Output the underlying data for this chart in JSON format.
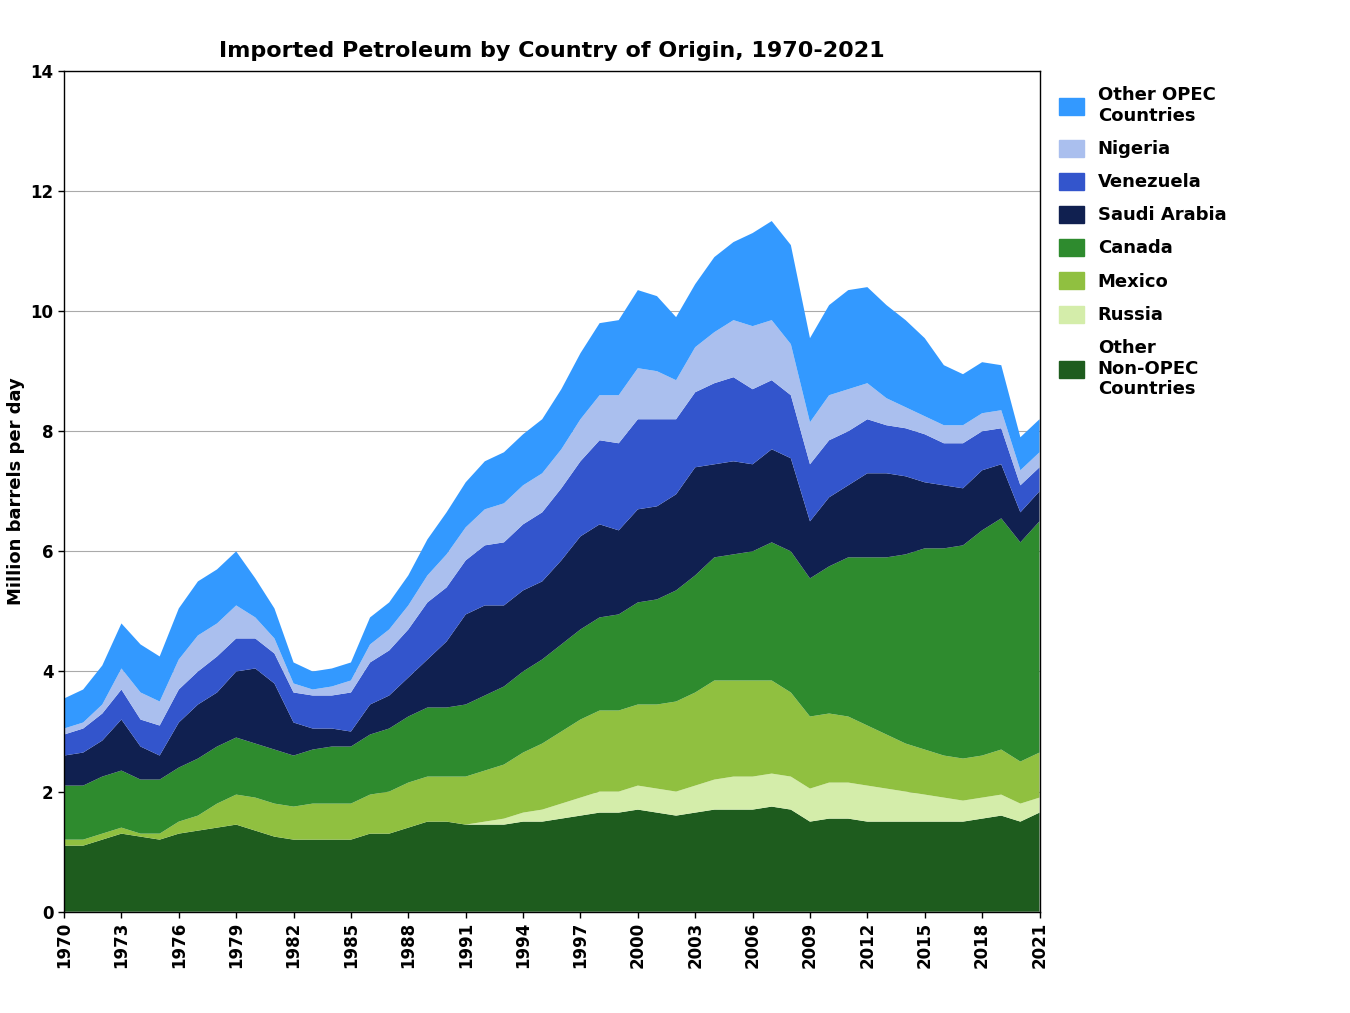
{
  "title": "Imported Petroleum by Country of Origin, 1970-2021",
  "ylabel": "Million barrels per day",
  "years": [
    1970,
    1971,
    1972,
    1973,
    1974,
    1975,
    1976,
    1977,
    1978,
    1979,
    1980,
    1981,
    1982,
    1983,
    1984,
    1985,
    1986,
    1987,
    1988,
    1989,
    1990,
    1991,
    1992,
    1993,
    1994,
    1995,
    1996,
    1997,
    1998,
    1999,
    2000,
    2001,
    2002,
    2003,
    2004,
    2005,
    2006,
    2007,
    2008,
    2009,
    2010,
    2011,
    2012,
    2013,
    2014,
    2015,
    2016,
    2017,
    2018,
    2019,
    2020,
    2021
  ],
  "series": {
    "Other Non-OPEC Countries": [
      1.1,
      1.1,
      1.2,
      1.3,
      1.25,
      1.2,
      1.3,
      1.35,
      1.4,
      1.45,
      1.35,
      1.25,
      1.2,
      1.2,
      1.2,
      1.2,
      1.3,
      1.3,
      1.4,
      1.5,
      1.5,
      1.45,
      1.45,
      1.45,
      1.5,
      1.5,
      1.55,
      1.6,
      1.65,
      1.65,
      1.7,
      1.65,
      1.6,
      1.65,
      1.7,
      1.7,
      1.7,
      1.75,
      1.7,
      1.5,
      1.55,
      1.55,
      1.5,
      1.5,
      1.5,
      1.5,
      1.5,
      1.5,
      1.55,
      1.6,
      1.5,
      1.65
    ],
    "Russia": [
      0.0,
      0.0,
      0.0,
      0.0,
      0.0,
      0.0,
      0.0,
      0.0,
      0.0,
      0.0,
      0.0,
      0.0,
      0.0,
      0.0,
      0.0,
      0.0,
      0.0,
      0.0,
      0.0,
      0.0,
      0.0,
      0.0,
      0.05,
      0.1,
      0.15,
      0.2,
      0.25,
      0.3,
      0.35,
      0.35,
      0.4,
      0.4,
      0.4,
      0.45,
      0.5,
      0.55,
      0.55,
      0.55,
      0.55,
      0.55,
      0.6,
      0.6,
      0.6,
      0.55,
      0.5,
      0.45,
      0.4,
      0.35,
      0.35,
      0.35,
      0.3,
      0.25
    ],
    "Mexico": [
      0.1,
      0.1,
      0.1,
      0.1,
      0.05,
      0.1,
      0.2,
      0.25,
      0.4,
      0.5,
      0.55,
      0.55,
      0.55,
      0.6,
      0.6,
      0.6,
      0.65,
      0.7,
      0.75,
      0.75,
      0.75,
      0.8,
      0.85,
      0.9,
      1.0,
      1.1,
      1.2,
      1.3,
      1.35,
      1.35,
      1.35,
      1.4,
      1.5,
      1.55,
      1.65,
      1.6,
      1.6,
      1.55,
      1.4,
      1.2,
      1.15,
      1.1,
      1.0,
      0.9,
      0.8,
      0.75,
      0.7,
      0.7,
      0.7,
      0.75,
      0.7,
      0.75
    ],
    "Canada": [
      0.9,
      0.9,
      0.95,
      0.95,
      0.9,
      0.9,
      0.9,
      0.95,
      0.95,
      0.95,
      0.9,
      0.9,
      0.85,
      0.9,
      0.95,
      0.95,
      1.0,
      1.05,
      1.1,
      1.15,
      1.15,
      1.2,
      1.25,
      1.3,
      1.35,
      1.4,
      1.45,
      1.5,
      1.55,
      1.6,
      1.7,
      1.75,
      1.85,
      1.95,
      2.05,
      2.1,
      2.15,
      2.3,
      2.35,
      2.3,
      2.45,
      2.65,
      2.8,
      2.95,
      3.15,
      3.35,
      3.45,
      3.55,
      3.75,
      3.85,
      3.65,
      3.85
    ],
    "Saudi Arabia": [
      0.5,
      0.55,
      0.6,
      0.85,
      0.55,
      0.4,
      0.75,
      0.9,
      0.9,
      1.1,
      1.25,
      1.1,
      0.55,
      0.35,
      0.3,
      0.25,
      0.5,
      0.55,
      0.65,
      0.8,
      1.1,
      1.5,
      1.5,
      1.35,
      1.35,
      1.3,
      1.4,
      1.55,
      1.55,
      1.4,
      1.55,
      1.55,
      1.6,
      1.8,
      1.55,
      1.55,
      1.45,
      1.55,
      1.55,
      0.95,
      1.15,
      1.2,
      1.4,
      1.4,
      1.3,
      1.1,
      1.05,
      0.95,
      1.0,
      0.9,
      0.5,
      0.5
    ],
    "Venezuela": [
      0.35,
      0.4,
      0.45,
      0.5,
      0.45,
      0.5,
      0.55,
      0.55,
      0.6,
      0.55,
      0.5,
      0.5,
      0.5,
      0.55,
      0.55,
      0.65,
      0.7,
      0.75,
      0.8,
      0.95,
      0.9,
      0.9,
      1.0,
      1.05,
      1.1,
      1.15,
      1.2,
      1.25,
      1.4,
      1.45,
      1.5,
      1.45,
      1.25,
      1.25,
      1.35,
      1.4,
      1.25,
      1.15,
      1.05,
      0.95,
      0.95,
      0.9,
      0.9,
      0.8,
      0.8,
      0.8,
      0.7,
      0.75,
      0.65,
      0.6,
      0.45,
      0.4
    ],
    "Nigeria": [
      0.1,
      0.1,
      0.15,
      0.35,
      0.45,
      0.4,
      0.5,
      0.6,
      0.55,
      0.55,
      0.35,
      0.25,
      0.15,
      0.1,
      0.15,
      0.2,
      0.3,
      0.35,
      0.4,
      0.45,
      0.55,
      0.55,
      0.6,
      0.65,
      0.65,
      0.65,
      0.65,
      0.7,
      0.75,
      0.8,
      0.85,
      0.8,
      0.65,
      0.75,
      0.85,
      0.95,
      1.05,
      1.0,
      0.85,
      0.7,
      0.75,
      0.7,
      0.6,
      0.45,
      0.35,
      0.3,
      0.3,
      0.3,
      0.3,
      0.3,
      0.25,
      0.25
    ],
    "Other OPEC Countries": [
      0.5,
      0.55,
      0.65,
      0.75,
      0.8,
      0.75,
      0.85,
      0.9,
      0.9,
      0.9,
      0.65,
      0.5,
      0.35,
      0.3,
      0.3,
      0.3,
      0.45,
      0.45,
      0.5,
      0.6,
      0.7,
      0.75,
      0.8,
      0.85,
      0.85,
      0.9,
      1.0,
      1.1,
      1.2,
      1.25,
      1.3,
      1.25,
      1.05,
      1.05,
      1.25,
      1.3,
      1.55,
      1.65,
      1.65,
      1.4,
      1.5,
      1.65,
      1.6,
      1.55,
      1.45,
      1.3,
      1.0,
      0.85,
      0.85,
      0.75,
      0.55,
      0.55
    ]
  },
  "colors": {
    "Other Non-OPEC Countries": "#1e5c1e",
    "Russia": "#d4edaa",
    "Mexico": "#90c040",
    "Canada": "#2e8b2e",
    "Saudi Arabia": "#102050",
    "Venezuela": "#3355cc",
    "Nigeria": "#aabfee",
    "Other OPEC Countries": "#3399ff"
  },
  "ylim": [
    0,
    14
  ],
  "yticks": [
    0,
    2,
    4,
    6,
    8,
    10,
    12,
    14
  ],
  "xticks": [
    1970,
    1973,
    1976,
    1979,
    1982,
    1985,
    1988,
    1991,
    1994,
    1997,
    2000,
    2003,
    2006,
    2009,
    2012,
    2015,
    2018,
    2021
  ],
  "figsize": [
    13.5,
    10.13
  ],
  "dpi": 100
}
